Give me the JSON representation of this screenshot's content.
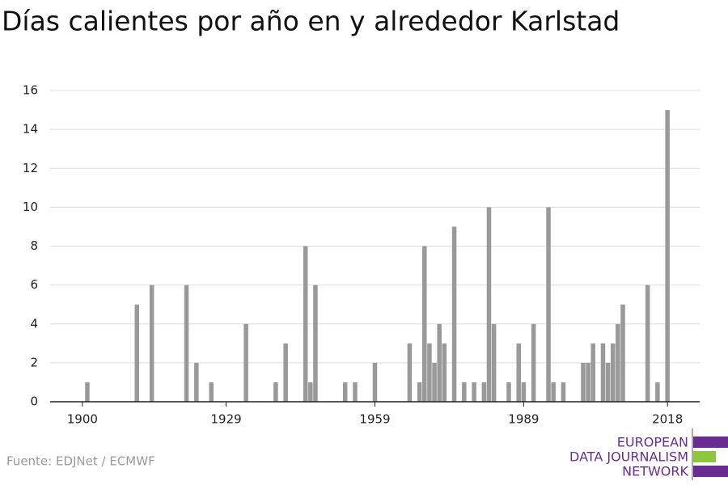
{
  "chart_data": {
    "type": "bar",
    "title": "Días calientes por año en y alrededor Karlstad",
    "source": "Fuente: EDJNet / ECMWF",
    "logo": [
      "EUROPEAN",
      "DATA JOURNALISM",
      "NETWORK"
    ],
    "color": "#999999",
    "x": [
      1901,
      1911,
      1914,
      1921,
      1923,
      1926,
      1933,
      1939,
      1941,
      1945,
      1946,
      1947,
      1953,
      1955,
      1959,
      1966,
      1968,
      1969,
      1970,
      1971,
      1972,
      1973,
      1975,
      1977,
      1979,
      1981,
      1982,
      1983,
      1986,
      1988,
      1989,
      1991,
      1994,
      1995,
      1997,
      2001,
      2002,
      2003,
      2005,
      2006,
      2007,
      2008,
      2009,
      2014,
      2016,
      2018
    ],
    "values": [
      1,
      5,
      6,
      6,
      2,
      1,
      4,
      1,
      3,
      8,
      1,
      6,
      1,
      1,
      2,
      3,
      1,
      8,
      3,
      2,
      4,
      3,
      9,
      1,
      1,
      1,
      10,
      4,
      1,
      3,
      1,
      4,
      10,
      1,
      1,
      2,
      2,
      3,
      3,
      2,
      3,
      4,
      5,
      6,
      1,
      15
    ],
    "xlim": [
      1893.5,
      2024.5
    ],
    "xticks": [
      1900,
      1929,
      1959,
      1989,
      2018
    ],
    "ylim": [
      0,
      16
    ],
    "yticks": [
      0,
      2,
      4,
      6,
      8,
      10,
      12,
      14,
      16
    ],
    "grid": true
  }
}
